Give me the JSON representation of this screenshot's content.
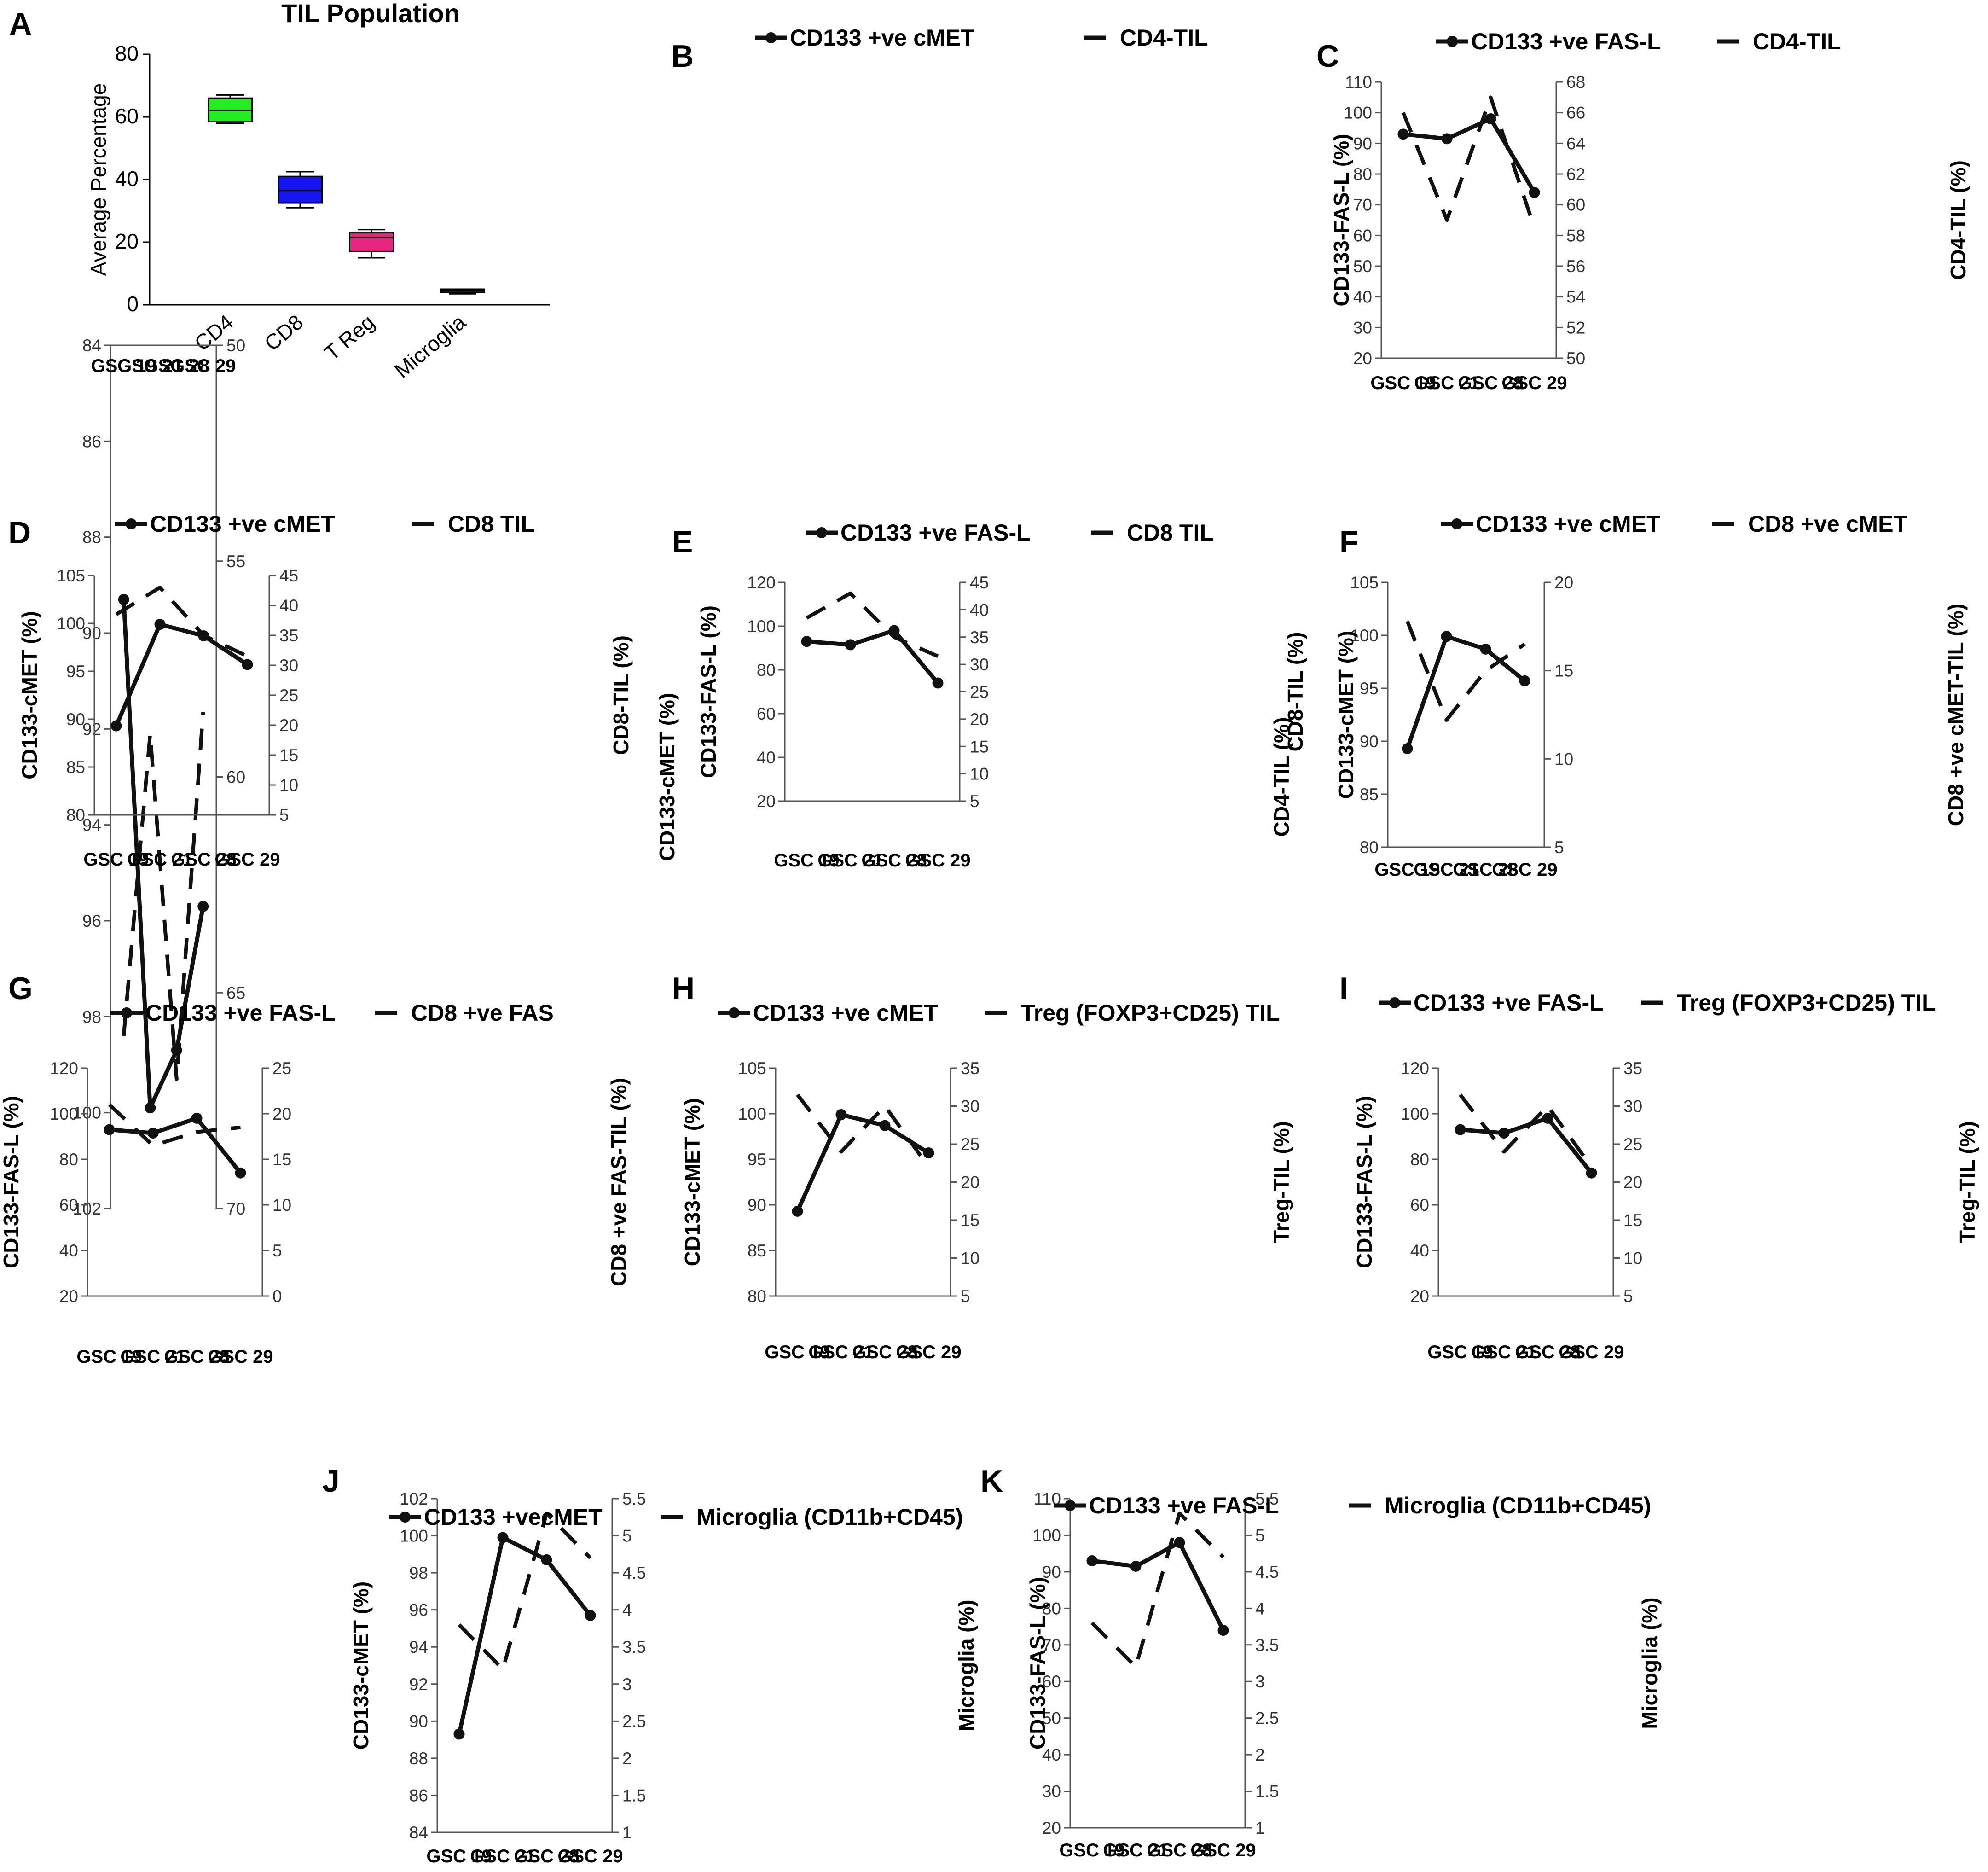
{
  "figure": {
    "chart_data": [
      {
        "panel": "A",
        "type": "box",
        "title": "TIL Population",
        "ylabel": "Average Percentage",
        "ylim": [
          0,
          80
        ],
        "yticks": [
          0,
          20,
          40,
          60,
          80
        ],
        "categories": [
          "CD4",
          "CD8",
          "T Reg",
          "Microglia"
        ],
        "boxes": [
          {
            "name": "CD4",
            "min": 58,
            "q1": 58.5,
            "median": 62,
            "q3": 66,
            "max": 67,
            "color": "#22ee22"
          },
          {
            "name": "CD8",
            "min": 31,
            "q1": 32.5,
            "median": 36.5,
            "q3": 41,
            "max": 42.5,
            "color": "#1515f0"
          },
          {
            "name": "T Reg",
            "min": 15,
            "q1": 17,
            "median": 21.5,
            "q3": 23,
            "max": 24,
            "color": "#e8257f"
          },
          {
            "name": "Microglia",
            "min": 3.5,
            "q1": 4,
            "median": 4.5,
            "q3": 5,
            "max": 5,
            "color": "#555555"
          }
        ]
      },
      {
        "panel": "B",
        "type": "line",
        "categories": [
          "GSC 19",
          "GSC 21",
          "GSC 28",
          "GSC 29"
        ],
        "left": {
          "label": "CD133-cMET (%)",
          "min": 84,
          "max": 102,
          "ticks": [
            "84",
            "86",
            "88",
            "90",
            "92",
            "94",
            "96",
            "98",
            "100",
            "102"
          ]
        },
        "right": {
          "label": "CD4-TIL (%)",
          "min": 50,
          "max": 70,
          "ticks": [
            "50",
            "55",
            "60",
            "65",
            "70"
          ]
        },
        "series": [
          {
            "name": "CD133 +ve cMET",
            "axis": "left",
            "style": "solid",
            "values": [
              89.3,
              99.9,
              98.7,
              95.7
            ]
          },
          {
            "name": "CD4-TIL",
            "axis": "right",
            "style": "dashed",
            "values": [
              66,
              59,
              67,
              58.5
            ]
          }
        ]
      },
      {
        "panel": "C",
        "type": "line",
        "categories": [
          "GSC 19",
          "GSC 21",
          "GSC 28",
          "GSC 29"
        ],
        "left": {
          "label": "CD133-FAS-L (%)",
          "min": 20,
          "max": 110,
          "ticks": [
            "20",
            "30",
            "40",
            "50",
            "60",
            "70",
            "80",
            "90",
            "100",
            "110"
          ]
        },
        "right": {
          "label": "CD4-TIL (%)",
          "min": 50,
          "max": 68,
          "ticks": [
            "50",
            "52",
            "54",
            "56",
            "58",
            "60",
            "62",
            "64",
            "66",
            "68"
          ]
        },
        "series": [
          {
            "name": "CD133 +ve FAS-L",
            "axis": "left",
            "style": "solid",
            "values": [
              93,
              91.5,
              98,
              74
            ]
          },
          {
            "name": "CD4-TIL",
            "axis": "right",
            "style": "dashed",
            "values": [
              66,
              59,
              67,
              58.5
            ]
          }
        ]
      },
      {
        "panel": "D",
        "type": "line",
        "categories": [
          "GSC 19",
          "GSC 21",
          "GSC 28",
          "GSC 29"
        ],
        "left": {
          "label": "CD133-cMET (%)",
          "min": 80,
          "max": 105,
          "ticks": [
            "80",
            "85",
            "90",
            "95",
            "100",
            "105"
          ]
        },
        "right": {
          "label": "CD8-TIL (%)",
          "min": 5,
          "max": 45,
          "ticks": [
            "5",
            "10",
            "15",
            "20",
            "25",
            "30",
            "35",
            "40",
            "45"
          ]
        },
        "series": [
          {
            "name": "CD133 +ve cMET",
            "axis": "left",
            "style": "solid",
            "values": [
              89.3,
              99.9,
              98.7,
              95.7
            ]
          },
          {
            "name": "CD8 TIL",
            "axis": "right",
            "style": "dashed",
            "values": [
              38.5,
              43,
              35,
              31.5
            ]
          }
        ]
      },
      {
        "panel": "E",
        "type": "line",
        "categories": [
          "GSC 19",
          "GSC 21",
          "GSC 28",
          "GSC 29"
        ],
        "left": {
          "label": "CD133-FAS-L (%)",
          "min": 20,
          "max": 120,
          "ticks": [
            "20",
            "40",
            "60",
            "80",
            "100",
            "120"
          ]
        },
        "right": {
          "label": "CD8-TIL (%)",
          "min": 5,
          "max": 45,
          "ticks": [
            "5",
            "10",
            "15",
            "20",
            "25",
            "30",
            "35",
            "40",
            "45"
          ]
        },
        "series": [
          {
            "name": "CD133 +ve FAS-L",
            "axis": "left",
            "style": "solid",
            "values": [
              93,
              91.5,
              98,
              74
            ]
          },
          {
            "name": "CD8 TIL",
            "axis": "right",
            "style": "dashed",
            "values": [
              38.5,
              43,
              35,
              31.5
            ]
          }
        ]
      },
      {
        "panel": "F",
        "type": "line",
        "categories": [
          "GSC 19",
          "GSC 21",
          "GSC 28",
          "GSC 29"
        ],
        "left": {
          "label": "CD133-cMET (%)",
          "min": 80,
          "max": 105,
          "ticks": [
            "80",
            "85",
            "90",
            "95",
            "100",
            "105"
          ]
        },
        "right": {
          "label": "CD8 +ve cMET-TIL (%)",
          "min": 5,
          "max": 20,
          "ticks": [
            "5",
            "10",
            "15",
            "20"
          ]
        },
        "series": [
          {
            "name": "CD133 +ve cMET",
            "axis": "left",
            "style": "solid",
            "values": [
              89.3,
              99.9,
              98.7,
              95.7
            ]
          },
          {
            "name": "CD8 +ve cMET",
            "axis": "right",
            "style": "dashed",
            "values": [
              17.8,
              12.2,
              15,
              16.5
            ]
          }
        ]
      },
      {
        "panel": "G",
        "type": "line",
        "categories": [
          "GSC 19",
          "GSC 21",
          "GSC 28",
          "GSC 29"
        ],
        "left": {
          "label": "CD133-FAS-L (%)",
          "min": 20,
          "max": 120,
          "ticks": [
            "20",
            "40",
            "60",
            "80",
            "100",
            "120"
          ]
        },
        "right": {
          "label": "CD8 +ve FAS-TIL (%)",
          "min": 0,
          "max": 25,
          "ticks": [
            "0",
            "5",
            "10",
            "15",
            "20",
            "25"
          ]
        },
        "series": [
          {
            "name": "CD133 +ve FAS-L",
            "axis": "left",
            "style": "solid",
            "values": [
              93,
              91.5,
              98,
              74
            ]
          },
          {
            "name": "CD8 +ve FAS",
            "axis": "right",
            "style": "dashed",
            "values": [
              21,
              16.5,
              18,
              18.5
            ]
          }
        ]
      },
      {
        "panel": "H",
        "type": "line",
        "categories": [
          "GSC 19",
          "GSC 21",
          "GSC 28",
          "GSC 29"
        ],
        "left": {
          "label": "CD133-cMET (%)",
          "min": 80,
          "max": 105,
          "ticks": [
            "80",
            "85",
            "90",
            "95",
            "100",
            "105"
          ]
        },
        "right": {
          "label": "Treg-TIL (%)",
          "min": 5,
          "max": 35,
          "ticks": [
            "5",
            "10",
            "15",
            "20",
            "25",
            "30",
            "35"
          ]
        },
        "series": [
          {
            "name": "CD133 +ve cMET",
            "axis": "left",
            "style": "solid",
            "values": [
              89.3,
              99.9,
              98.7,
              95.7
            ]
          },
          {
            "name": "Treg (FOXP3+CD25) TIL",
            "axis": "right",
            "style": "dashed",
            "values": [
              31.5,
              24,
              30,
              22
            ]
          }
        ]
      },
      {
        "panel": "I",
        "type": "line",
        "categories": [
          "GSC 19",
          "GSC 21",
          "GSC 28",
          "GSC 29"
        ],
        "left": {
          "label": "CD133-FAS-L (%)",
          "min": 20,
          "max": 120,
          "ticks": [
            "20",
            "40",
            "60",
            "80",
            "100",
            "120"
          ]
        },
        "right": {
          "label": "Treg-TIL (%)",
          "min": 5,
          "max": 35,
          "ticks": [
            "5",
            "10",
            "15",
            "20",
            "25",
            "30",
            "35"
          ]
        },
        "series": [
          {
            "name": "CD133 +ve FAS-L",
            "axis": "left",
            "style": "solid",
            "values": [
              93,
              91.5,
              98,
              74
            ]
          },
          {
            "name": "Treg (FOXP3+CD25) TIL",
            "axis": "right",
            "style": "dashed",
            "values": [
              31.5,
              24,
              30,
              22
            ]
          }
        ]
      },
      {
        "panel": "J",
        "type": "line",
        "categories": [
          "GSC 19",
          "GSC 21",
          "GSC 28",
          "GSC 29"
        ],
        "left": {
          "label": "CD133-cMET (%)",
          "min": 84,
          "max": 102,
          "ticks": [
            "84",
            "86",
            "88",
            "90",
            "92",
            "94",
            "96",
            "98",
            "100",
            "102"
          ]
        },
        "right": {
          "label": "Microglia (%)",
          "min": 1,
          "max": 5.5,
          "ticks": [
            "1",
            "1.5",
            "2",
            "2.5",
            "3",
            "3.5",
            "4",
            "4.5",
            "5",
            "5.5"
          ]
        },
        "series": [
          {
            "name": "CD133 +vecMET",
            "axis": "left",
            "style": "solid",
            "values": [
              89.3,
              99.9,
              98.7,
              95.7
            ]
          },
          {
            "name": "Microglia (CD11b+CD45)",
            "axis": "right",
            "style": "dashed",
            "values": [
              3.8,
              3.2,
              5.3,
              4.7
            ]
          }
        ]
      },
      {
        "panel": "K",
        "type": "line",
        "categories": [
          "GSC 19",
          "GSC 21",
          "GSC 28",
          "GSC 29"
        ],
        "left": {
          "label": "CD133-FAS-L (%)",
          "min": 20,
          "max": 110,
          "ticks": [
            "20",
            "30",
            "40",
            "50",
            "60",
            "70",
            "80",
            "90",
            "100",
            "110"
          ]
        },
        "right": {
          "label": "Microglia (%)",
          "min": 1,
          "max": 5.5,
          "ticks": [
            "1",
            "1.5",
            "2",
            "2.5",
            "3",
            "3.5",
            "4",
            "4.5",
            "5",
            "5.5"
          ]
        },
        "series": [
          {
            "name": "CD133 +ve FAS-L",
            "axis": "left",
            "style": "solid",
            "values": [
              93,
              91.5,
              98,
              74
            ]
          },
          {
            "name": "Microglia (CD11b+CD45)",
            "axis": "right",
            "style": "dashed",
            "values": [
              3.8,
              3.2,
              5.3,
              4.7
            ]
          }
        ]
      }
    ]
  }
}
